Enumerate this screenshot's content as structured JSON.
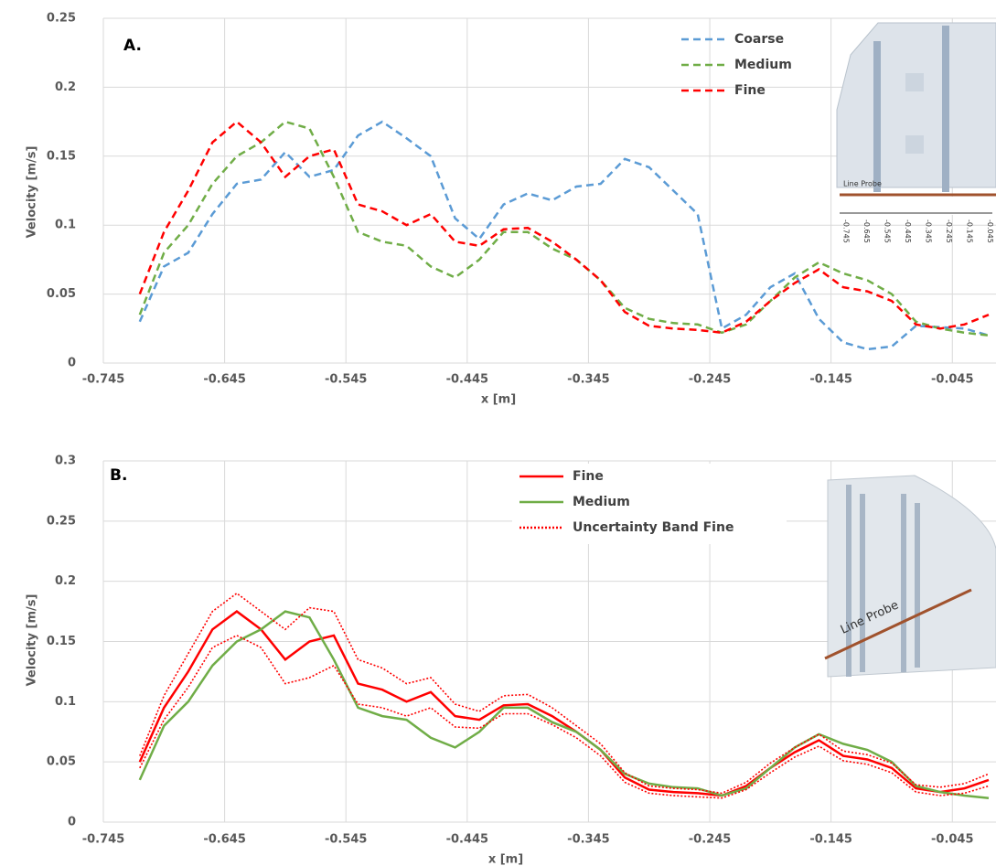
{
  "chart_data": [
    {
      "type": "line",
      "title": "A.",
      "x_label": "x [m]",
      "y_label": "Velocity [m/s]",
      "line_style": "dashed",
      "grid": true,
      "xlim": [
        -0.745,
        -0.009
      ],
      "xticks": [
        -0.745,
        -0.645,
        -0.545,
        -0.445,
        -0.345,
        -0.245,
        -0.145,
        -0.045
      ],
      "ylim": [
        0,
        0.25
      ],
      "yticks": [
        0,
        0.05,
        0.1,
        0.15,
        0.2,
        0.25
      ],
      "x": [
        -0.715,
        -0.695,
        -0.675,
        -0.655,
        -0.635,
        -0.615,
        -0.595,
        -0.575,
        -0.555,
        -0.535,
        -0.515,
        -0.495,
        -0.475,
        -0.455,
        -0.435,
        -0.415,
        -0.395,
        -0.375,
        -0.355,
        -0.335,
        -0.315,
        -0.295,
        -0.275,
        -0.255,
        -0.235,
        -0.215,
        -0.195,
        -0.175,
        -0.155,
        -0.135,
        -0.115,
        -0.095,
        -0.075,
        -0.055,
        -0.035,
        -0.015
      ],
      "series": [
        {
          "name": "Coarse",
          "color": "#5b9bd5",
          "values": [
            0.03,
            0.07,
            0.08,
            0.108,
            0.13,
            0.133,
            0.153,
            0.135,
            0.14,
            0.165,
            0.175,
            0.163,
            0.15,
            0.105,
            0.09,
            0.115,
            0.123,
            0.118,
            0.128,
            0.13,
            0.148,
            0.142,
            0.125,
            0.108,
            0.025,
            0.035,
            0.055,
            0.065,
            0.032,
            0.015,
            0.01,
            0.012,
            0.027,
            0.026,
            0.025,
            0.02
          ]
        },
        {
          "name": "Medium",
          "color": "#70ad47",
          "values": [
            0.035,
            0.08,
            0.1,
            0.13,
            0.15,
            0.16,
            0.175,
            0.17,
            0.135,
            0.095,
            0.088,
            0.085,
            0.07,
            0.062,
            0.075,
            0.095,
            0.095,
            0.083,
            0.075,
            0.06,
            0.04,
            0.032,
            0.029,
            0.028,
            0.022,
            0.028,
            0.045,
            0.062,
            0.073,
            0.065,
            0.06,
            0.05,
            0.03,
            0.025,
            0.022,
            0.02
          ]
        },
        {
          "name": "Fine",
          "color": "#ff0000",
          "values": [
            0.05,
            0.095,
            0.125,
            0.16,
            0.175,
            0.16,
            0.135,
            0.15,
            0.155,
            0.115,
            0.11,
            0.1,
            0.108,
            0.088,
            0.085,
            0.097,
            0.098,
            0.088,
            0.075,
            0.06,
            0.037,
            0.027,
            0.025,
            0.024,
            0.022,
            0.03,
            0.045,
            0.058,
            0.068,
            0.055,
            0.052,
            0.045,
            0.028,
            0.025,
            0.028,
            0.035
          ]
        }
      ],
      "inset_label": "Line Probe",
      "inset_ticks": [
        "-0.745",
        "-0.645",
        "-0.545",
        "-0.445",
        "-0.345",
        "-0.245",
        "-0.145",
        "-0.045"
      ]
    },
    {
      "type": "line",
      "title": "B.",
      "x_label": "x [m]",
      "y_label": "Velocity [m/s]",
      "line_style": "solid",
      "grid": true,
      "xlim": [
        -0.745,
        -0.009
      ],
      "xticks": [
        -0.745,
        -0.645,
        -0.545,
        -0.445,
        -0.345,
        -0.245,
        -0.145,
        -0.045
      ],
      "ylim": [
        0,
        0.3
      ],
      "yticks": [
        0,
        0.05,
        0.1,
        0.15,
        0.2,
        0.25,
        0.3
      ],
      "x": [
        -0.715,
        -0.695,
        -0.675,
        -0.655,
        -0.635,
        -0.615,
        -0.595,
        -0.575,
        -0.555,
        -0.535,
        -0.515,
        -0.495,
        -0.475,
        -0.455,
        -0.435,
        -0.415,
        -0.395,
        -0.375,
        -0.355,
        -0.335,
        -0.315,
        -0.295,
        -0.275,
        -0.255,
        -0.235,
        -0.215,
        -0.195,
        -0.175,
        -0.155,
        -0.135,
        -0.115,
        -0.095,
        -0.075,
        -0.055,
        -0.035,
        -0.015
      ],
      "series": [
        {
          "name": "Fine",
          "color": "#ff0000",
          "values": [
            0.05,
            0.095,
            0.125,
            0.16,
            0.175,
            0.16,
            0.135,
            0.15,
            0.155,
            0.115,
            0.11,
            0.1,
            0.108,
            0.088,
            0.085,
            0.097,
            0.098,
            0.088,
            0.075,
            0.06,
            0.037,
            0.027,
            0.025,
            0.024,
            0.022,
            0.03,
            0.045,
            0.058,
            0.068,
            0.055,
            0.052,
            0.045,
            0.028,
            0.025,
            0.028,
            0.035
          ]
        },
        {
          "name": "Medium",
          "color": "#70ad47",
          "values": [
            0.035,
            0.08,
            0.1,
            0.13,
            0.15,
            0.16,
            0.175,
            0.17,
            0.135,
            0.095,
            0.088,
            0.085,
            0.07,
            0.062,
            0.075,
            0.095,
            0.095,
            0.083,
            0.075,
            0.06,
            0.04,
            0.032,
            0.029,
            0.028,
            0.022,
            0.028,
            0.045,
            0.062,
            0.073,
            0.065,
            0.06,
            0.05,
            0.03,
            0.025,
            0.022,
            0.02
          ]
        },
        {
          "name": "Uncertainty Band Fine",
          "color": "#ff0000",
          "style": "dotted",
          "upper": [
            0.055,
            0.105,
            0.14,
            0.175,
            0.19,
            0.175,
            0.16,
            0.178,
            0.175,
            0.135,
            0.128,
            0.115,
            0.12,
            0.098,
            0.092,
            0.105,
            0.106,
            0.095,
            0.08,
            0.065,
            0.041,
            0.03,
            0.028,
            0.027,
            0.024,
            0.033,
            0.049,
            0.062,
            0.073,
            0.059,
            0.056,
            0.049,
            0.031,
            0.029,
            0.032,
            0.04
          ],
          "lower": [
            0.045,
            0.085,
            0.112,
            0.145,
            0.155,
            0.145,
            0.115,
            0.12,
            0.13,
            0.098,
            0.095,
            0.088,
            0.095,
            0.079,
            0.078,
            0.09,
            0.09,
            0.081,
            0.07,
            0.055,
            0.033,
            0.024,
            0.022,
            0.021,
            0.02,
            0.027,
            0.041,
            0.054,
            0.063,
            0.051,
            0.048,
            0.041,
            0.025,
            0.022,
            0.024,
            0.03
          ]
        }
      ],
      "inset_label": "Line Probe"
    }
  ]
}
